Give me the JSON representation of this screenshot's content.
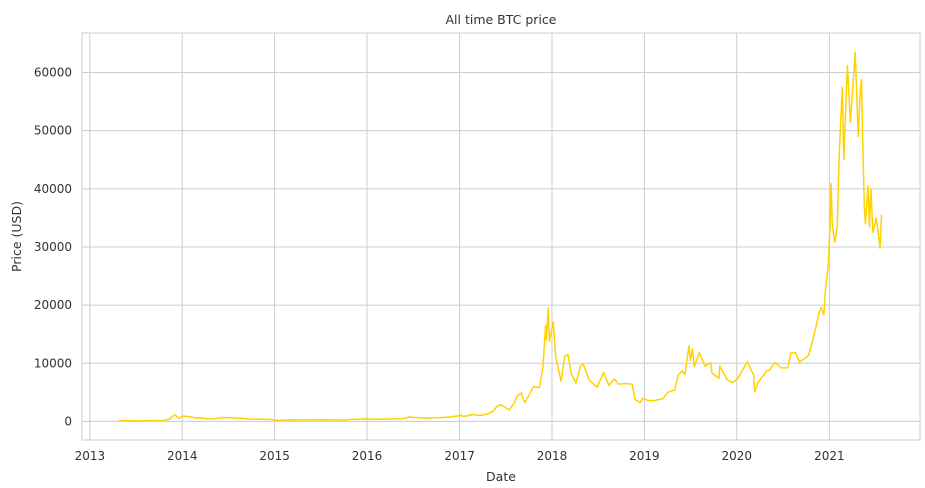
{
  "chart_data": {
    "type": "line",
    "title": "All time BTC price",
    "xlabel": "Date",
    "ylabel": "Price (USD)",
    "x_type": "date",
    "xlim": [
      "2012-12-01",
      "2021-12-25"
    ],
    "ylim": [
      -3200,
      66800
    ],
    "x_ticks": [
      "2013",
      "2014",
      "2015",
      "2016",
      "2017",
      "2018",
      "2019",
      "2020",
      "2021"
    ],
    "y_ticks": [
      0,
      10000,
      20000,
      30000,
      40000,
      50000,
      60000
    ],
    "y_tick_labels": [
      "0",
      "10000",
      "20000",
      "30000",
      "40000",
      "50000",
      "60000"
    ],
    "grid": true,
    "legend": "none",
    "series": [
      {
        "color": "#ffd200",
        "points": [
          [
            "2013-04-28",
            135
          ],
          [
            "2013-06-01",
            120
          ],
          [
            "2013-07-15",
            90
          ],
          [
            "2013-09-01",
            130
          ],
          [
            "2013-10-15",
            150
          ],
          [
            "2013-11-10",
            350
          ],
          [
            "2013-11-20",
            700
          ],
          [
            "2013-12-01",
            1130
          ],
          [
            "2013-12-05",
            1050
          ],
          [
            "2013-12-18",
            550
          ],
          [
            "2014-01-05",
            900
          ],
          [
            "2014-01-25",
            850
          ],
          [
            "2014-02-25",
            580
          ],
          [
            "2014-03-20",
            600
          ],
          [
            "2014-04-12",
            420
          ],
          [
            "2014-05-10",
            450
          ],
          [
            "2014-06-03",
            660
          ],
          [
            "2014-07-15",
            620
          ],
          [
            "2014-08-20",
            510
          ],
          [
            "2014-09-20",
            420
          ],
          [
            "2014-10-20",
            390
          ],
          [
            "2014-11-20",
            370
          ],
          [
            "2014-12-20",
            320
          ],
          [
            "2015-01-14",
            180
          ],
          [
            "2015-03-01",
            260
          ],
          [
            "2015-05-01",
            235
          ],
          [
            "2015-07-10",
            280
          ],
          [
            "2015-08-20",
            230
          ],
          [
            "2015-09-20",
            230
          ],
          [
            "2015-10-20",
            270
          ],
          [
            "2015-11-04",
            420
          ],
          [
            "2015-11-15",
            330
          ],
          [
            "2015-12-20",
            440
          ],
          [
            "2016-02-01",
            380
          ],
          [
            "2016-04-01",
            420
          ],
          [
            "2016-05-20",
            450
          ],
          [
            "2016-06-17",
            750
          ],
          [
            "2016-07-10",
            660
          ],
          [
            "2016-08-10",
            580
          ],
          [
            "2016-10-10",
            620
          ],
          [
            "2016-11-20",
            730
          ],
          [
            "2016-12-20",
            900
          ],
          [
            "2017-01-05",
            1100
          ],
          [
            "2017-01-15",
            850
          ],
          [
            "2017-02-25",
            1180
          ],
          [
            "2017-03-20",
            1000
          ],
          [
            "2017-04-20",
            1250
          ],
          [
            "2017-05-15",
            1800
          ],
          [
            "2017-05-25",
            2400
          ],
          [
            "2017-06-12",
            2900
          ],
          [
            "2017-07-16",
            1950
          ],
          [
            "2017-08-05",
            3200
          ],
          [
            "2017-08-15",
            4300
          ],
          [
            "2017-09-01",
            4900
          ],
          [
            "2017-09-15",
            3200
          ],
          [
            "2017-10-01",
            4400
          ],
          [
            "2017-10-20",
            6000
          ],
          [
            "2017-11-12",
            5800
          ],
          [
            "2017-11-26",
            9300
          ],
          [
            "2017-12-07",
            16500
          ],
          [
            "2017-12-10",
            14000
          ],
          [
            "2017-12-17",
            19500
          ],
          [
            "2017-12-22",
            13800
          ],
          [
            "2018-01-06",
            17100
          ],
          [
            "2018-01-16",
            11000
          ],
          [
            "2018-02-06",
            6900
          ],
          [
            "2018-02-20",
            11200
          ],
          [
            "2018-03-05",
            11500
          ],
          [
            "2018-03-18",
            8200
          ],
          [
            "2018-04-06",
            6600
          ],
          [
            "2018-04-24",
            9600
          ],
          [
            "2018-05-05",
            9800
          ],
          [
            "2018-05-28",
            7100
          ],
          [
            "2018-06-28",
            5900
          ],
          [
            "2018-07-24",
            8400
          ],
          [
            "2018-08-14",
            6200
          ],
          [
            "2018-09-05",
            7300
          ],
          [
            "2018-09-20",
            6400
          ],
          [
            "2018-10-20",
            6500
          ],
          [
            "2018-11-14",
            6400
          ],
          [
            "2018-11-25",
            3800
          ],
          [
            "2018-12-15",
            3200
          ],
          [
            "2018-12-25",
            4000
          ],
          [
            "2019-01-15",
            3600
          ],
          [
            "2019-02-10",
            3600
          ],
          [
            "2019-03-15",
            3900
          ],
          [
            "2019-04-03",
            5000
          ],
          [
            "2019-05-01",
            5400
          ],
          [
            "2019-05-15",
            8000
          ],
          [
            "2019-05-30",
            8700
          ],
          [
            "2019-06-10",
            8000
          ],
          [
            "2019-06-26",
            13000
          ],
          [
            "2019-07-02",
            10500
          ],
          [
            "2019-07-10",
            12500
          ],
          [
            "2019-07-17",
            9400
          ],
          [
            "2019-08-06",
            11800
          ],
          [
            "2019-08-29",
            9500
          ],
          [
            "2019-09-20",
            10100
          ],
          [
            "2019-09-25",
            8300
          ],
          [
            "2019-10-23",
            7400
          ],
          [
            "2019-10-26",
            9500
          ],
          [
            "2019-11-25",
            7100
          ],
          [
            "2019-12-17",
            6700
          ],
          [
            "2020-01-05",
            7400
          ],
          [
            "2020-02-12",
            10300
          ],
          [
            "2020-02-28",
            8700
          ],
          [
            "2020-03-08",
            8000
          ],
          [
            "2020-03-12",
            5100
          ],
          [
            "2020-03-25",
            6700
          ],
          [
            "2020-04-29",
            8700
          ],
          [
            "2020-05-10",
            8800
          ],
          [
            "2020-05-20",
            9500
          ],
          [
            "2020-06-01",
            10100
          ],
          [
            "2020-06-25",
            9200
          ],
          [
            "2020-07-20",
            9200
          ],
          [
            "2020-08-02",
            11800
          ],
          [
            "2020-08-20",
            11800
          ],
          [
            "2020-09-05",
            10200
          ],
          [
            "2020-10-10",
            11300
          ],
          [
            "2020-10-21",
            12900
          ],
          [
            "2020-11-05",
            15500
          ],
          [
            "2020-11-20",
            18500
          ],
          [
            "2020-11-30",
            19600
          ],
          [
            "2020-12-10",
            18300
          ],
          [
            "2020-12-17",
            23000
          ],
          [
            "2020-12-28",
            27000
          ],
          [
            "2021-01-03",
            33000
          ],
          [
            "2021-01-08",
            40900
          ],
          [
            "2021-01-12",
            34000
          ],
          [
            "2021-01-22",
            30800
          ],
          [
            "2021-02-01",
            33500
          ],
          [
            "2021-02-09",
            46000
          ],
          [
            "2021-02-21",
            57500
          ],
          [
            "2021-02-27",
            45000
          ],
          [
            "2021-03-13",
            61200
          ],
          [
            "2021-03-25",
            51500
          ],
          [
            "2021-04-13",
            63500
          ],
          [
            "2021-04-25",
            49000
          ],
          [
            "2021-05-03",
            57000
          ],
          [
            "2021-05-08",
            58800
          ],
          [
            "2021-05-12",
            49500
          ],
          [
            "2021-05-19",
            37000
          ],
          [
            "2021-05-23",
            34000
          ],
          [
            "2021-06-03",
            40500
          ],
          [
            "2021-06-08",
            33500
          ],
          [
            "2021-06-14",
            40000
          ],
          [
            "2021-06-22",
            32500
          ],
          [
            "2021-07-05",
            35000
          ],
          [
            "2021-07-15",
            31800
          ],
          [
            "2021-07-20",
            29800
          ],
          [
            "2021-07-24",
            33500
          ],
          [
            "2021-07-26",
            35500
          ]
        ]
      }
    ]
  }
}
